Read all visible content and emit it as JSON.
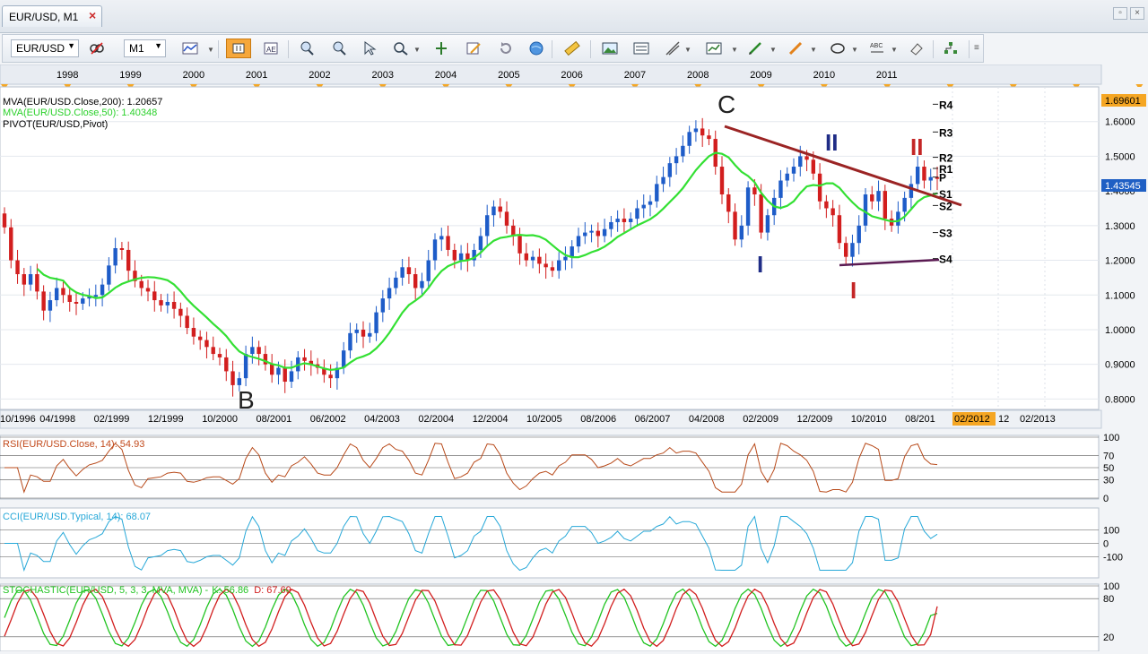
{
  "window": {
    "tab_title": "EUR/USD, M1"
  },
  "toolbar": {
    "symbol": "EUR/USD",
    "timeframe": "M1"
  },
  "chart_data": {
    "type": "candlestick",
    "instrument": "EUR/USD",
    "timeframe": "M1",
    "top_axis_years": [
      "1998",
      "1999",
      "2000",
      "2001",
      "2002",
      "2003",
      "2004",
      "2005",
      "2006",
      "2007",
      "2008",
      "2009",
      "2010",
      "2011"
    ],
    "x_tick_labels": [
      "10/1996",
      "04/1998",
      "02/1999",
      "12/1999",
      "10/2000",
      "08/2001",
      "06/2002",
      "04/2003",
      "02/2004",
      "12/2004",
      "10/2005",
      "08/2006",
      "06/2007",
      "04/2008",
      "02/2009",
      "12/2009",
      "10/2010",
      "08/201"
    ],
    "x_future_labels": [
      "02/2012",
      "12",
      "02/2013"
    ],
    "y_ticks": [
      "1.6000",
      "1.5000",
      "1.4000",
      "1.3000",
      "1.2000",
      "1.1000",
      "1.0000",
      "0.9000",
      "0.8000"
    ],
    "ylim": [
      0.77,
      1.7
    ],
    "last_price": "1.43545",
    "top_price": "1.69601",
    "series_close": [
      1.295,
      1.2,
      1.16,
      1.13,
      1.16,
      1.11,
      1.055,
      1.085,
      1.12,
      1.1,
      1.08,
      1.075,
      1.09,
      1.095,
      1.1,
      1.13,
      1.185,
      1.235,
      1.23,
      1.17,
      1.14,
      1.12,
      1.11,
      1.085,
      1.07,
      1.08,
      1.06,
      1.04,
      1.005,
      0.98,
      0.97,
      0.95,
      0.93,
      0.92,
      0.88,
      0.84,
      0.86,
      0.93,
      0.95,
      0.93,
      0.9,
      0.87,
      0.89,
      0.85,
      0.88,
      0.92,
      0.91,
      0.9,
      0.89,
      0.87,
      0.86,
      0.89,
      0.94,
      0.99,
      1.0,
      0.98,
      0.99,
      1.05,
      1.09,
      1.12,
      1.15,
      1.18,
      1.16,
      1.12,
      1.14,
      1.2,
      1.26,
      1.27,
      1.23,
      1.2,
      1.22,
      1.2,
      1.23,
      1.27,
      1.33,
      1.355,
      1.34,
      1.3,
      1.27,
      1.22,
      1.2,
      1.21,
      1.19,
      1.18,
      1.17,
      1.2,
      1.21,
      1.24,
      1.27,
      1.28,
      1.285,
      1.27,
      1.29,
      1.31,
      1.32,
      1.31,
      1.32,
      1.35,
      1.36,
      1.37,
      1.42,
      1.44,
      1.48,
      1.5,
      1.53,
      1.57,
      1.58,
      1.56,
      1.55,
      1.47,
      1.39,
      1.34,
      1.26,
      1.3,
      1.41,
      1.39,
      1.28,
      1.33,
      1.38,
      1.43,
      1.45,
      1.47,
      1.5,
      1.49,
      1.45,
      1.37,
      1.35,
      1.33,
      1.25,
      1.21,
      1.25,
      1.3,
      1.39,
      1.37,
      1.4,
      1.32,
      1.3,
      1.34,
      1.38,
      1.42,
      1.47,
      1.43,
      1.44,
      1.43545
    ],
    "ma_labels": [
      {
        "text": "MVA(EUR/USD.Close,200): 1.20657",
        "color": "#000000"
      },
      {
        "text": "MVA(EUR/USD.Close,50): 1.40348",
        "color": "#2bd12b"
      },
      {
        "text": "PIVOT(EUR/USD,Pivot)",
        "color": "#000000"
      }
    ],
    "pivot_levels": [
      {
        "name": "R4",
        "value": 1.65
      },
      {
        "name": "R3",
        "value": 1.57
      },
      {
        "name": "R2",
        "value": 1.497
      },
      {
        "name": "R1",
        "value": 1.465
      },
      {
        "name": "P",
        "value": 1.44
      },
      {
        "name": "S1",
        "value": 1.393
      },
      {
        "name": "S2",
        "value": 1.358
      },
      {
        "name": "S3",
        "value": 1.28
      },
      {
        "name": "S4",
        "value": 1.205
      }
    ],
    "wave_labels": [
      "B",
      "C",
      "I",
      "II",
      "I",
      "II"
    ],
    "indicators": {
      "rsi": {
        "label": "RSI(EUR/USD.Close, 14): 54.93",
        "value": 54.93,
        "ticks": [
          "100",
          "70",
          "50",
          "30",
          "0"
        ]
      },
      "cci": {
        "label": "CCI(EUR/USD.Typical, 14): 68.07",
        "value": 68.07,
        "ticks": [
          "100",
          "0",
          "-100"
        ]
      },
      "stochastic": {
        "label_prefix": "STOCHASTIC(EUR/USD, 5, 3, 3, MVA, MVA) -",
        "k_label": "K: 56.86",
        "d_label": "D: 67.69",
        "k": 56.86,
        "d": 67.69,
        "ticks": [
          "100",
          "80",
          "20"
        ]
      }
    }
  }
}
